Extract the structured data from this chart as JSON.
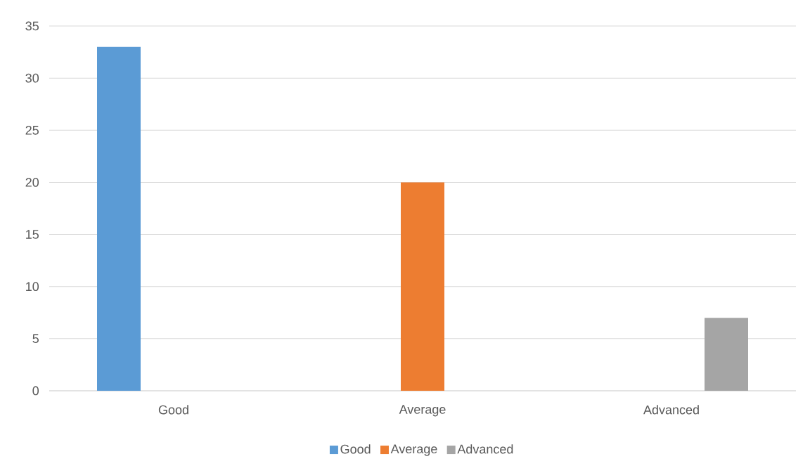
{
  "chart_data": {
    "type": "bar",
    "categories": [
      "Good",
      "Average",
      "Advanced"
    ],
    "series": [
      {
        "name": "Good",
        "color": "#5b9bd5",
        "values": [
          33,
          null,
          null
        ]
      },
      {
        "name": "Average",
        "color": "#ed7d31",
        "values": [
          null,
          20,
          null
        ]
      },
      {
        "name": "Advanced",
        "color": "#a5a5a5",
        "values": [
          null,
          null,
          7
        ]
      }
    ],
    "ylim": [
      0,
      35
    ],
    "yticks": [
      0,
      5,
      10,
      15,
      20,
      25,
      30,
      35
    ],
    "grid": "y",
    "legend": "bottom"
  }
}
